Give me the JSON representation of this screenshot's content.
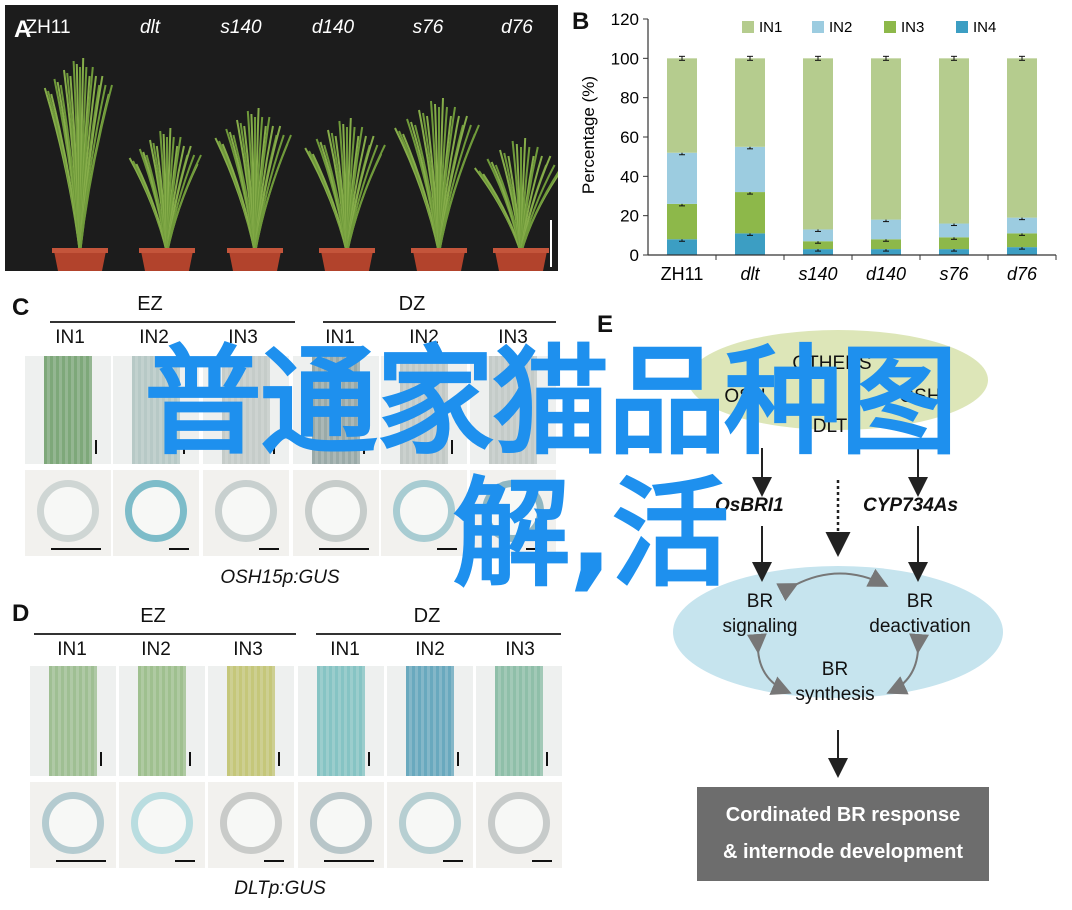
{
  "panel_labels": {
    "a": "A",
    "b": "B",
    "c": "C",
    "d": "D",
    "e": "E"
  },
  "panel_a": {
    "lines": [
      "ZH11",
      "dlt",
      "s140",
      "d140",
      "s76",
      "d76"
    ]
  },
  "chart_data": {
    "type": "bar",
    "stacked": true,
    "categories": [
      "ZH11",
      "dlt",
      "s140",
      "d140",
      "s76",
      "d76"
    ],
    "italic_categories": [
      "dlt",
      "s140",
      "d140",
      "s76",
      "d76"
    ],
    "ylabel": "Percentage (%)",
    "ylim": [
      0,
      120
    ],
    "yticks": [
      0,
      20,
      40,
      60,
      80,
      100,
      120
    ],
    "legend_position": "top",
    "series": [
      {
        "name": "IN4",
        "color": "#3c9ec3",
        "values": [
          8,
          11,
          3,
          3,
          3,
          4
        ]
      },
      {
        "name": "IN3",
        "color": "#8db84a",
        "values": [
          18,
          21,
          4,
          5,
          6,
          7
        ]
      },
      {
        "name": "IN2",
        "color": "#9ccce0",
        "values": [
          26,
          23,
          6,
          10,
          7,
          8
        ]
      },
      {
        "name": "IN1",
        "color": "#b5cc8e",
        "values": [
          48,
          45,
          87,
          82,
          84,
          81
        ]
      }
    ]
  },
  "panel_c": {
    "group1": "EZ",
    "group2": "DZ",
    "subs": [
      "IN1",
      "IN2",
      "IN3",
      "IN1",
      "IN2",
      "IN3"
    ],
    "caption": "OSH15p:GUS"
  },
  "panel_d": {
    "group1": "EZ",
    "group2": "DZ",
    "subs": [
      "IN1",
      "IN2",
      "IN3",
      "IN1",
      "IN2",
      "IN3"
    ],
    "caption": "DLTp:GUS"
  },
  "panel_e": {
    "others": "OTHERS",
    "osh": "OSH",
    "osh2": "OSH",
    "dlt": "DLT",
    "gene1": "OsBRI1",
    "gene2": "CYP734As",
    "node1_l1": "BR",
    "node1_l2": "signaling",
    "node2_l1": "BR",
    "node2_l2": "deactivation",
    "node3_l1": "BR",
    "node3_l2": "synthesis",
    "out_l1": "Cordinated BR response",
    "out_l2": "& internode development"
  },
  "overlay": {
    "line1": "普通家猫品种图",
    "line2": "解,活"
  }
}
